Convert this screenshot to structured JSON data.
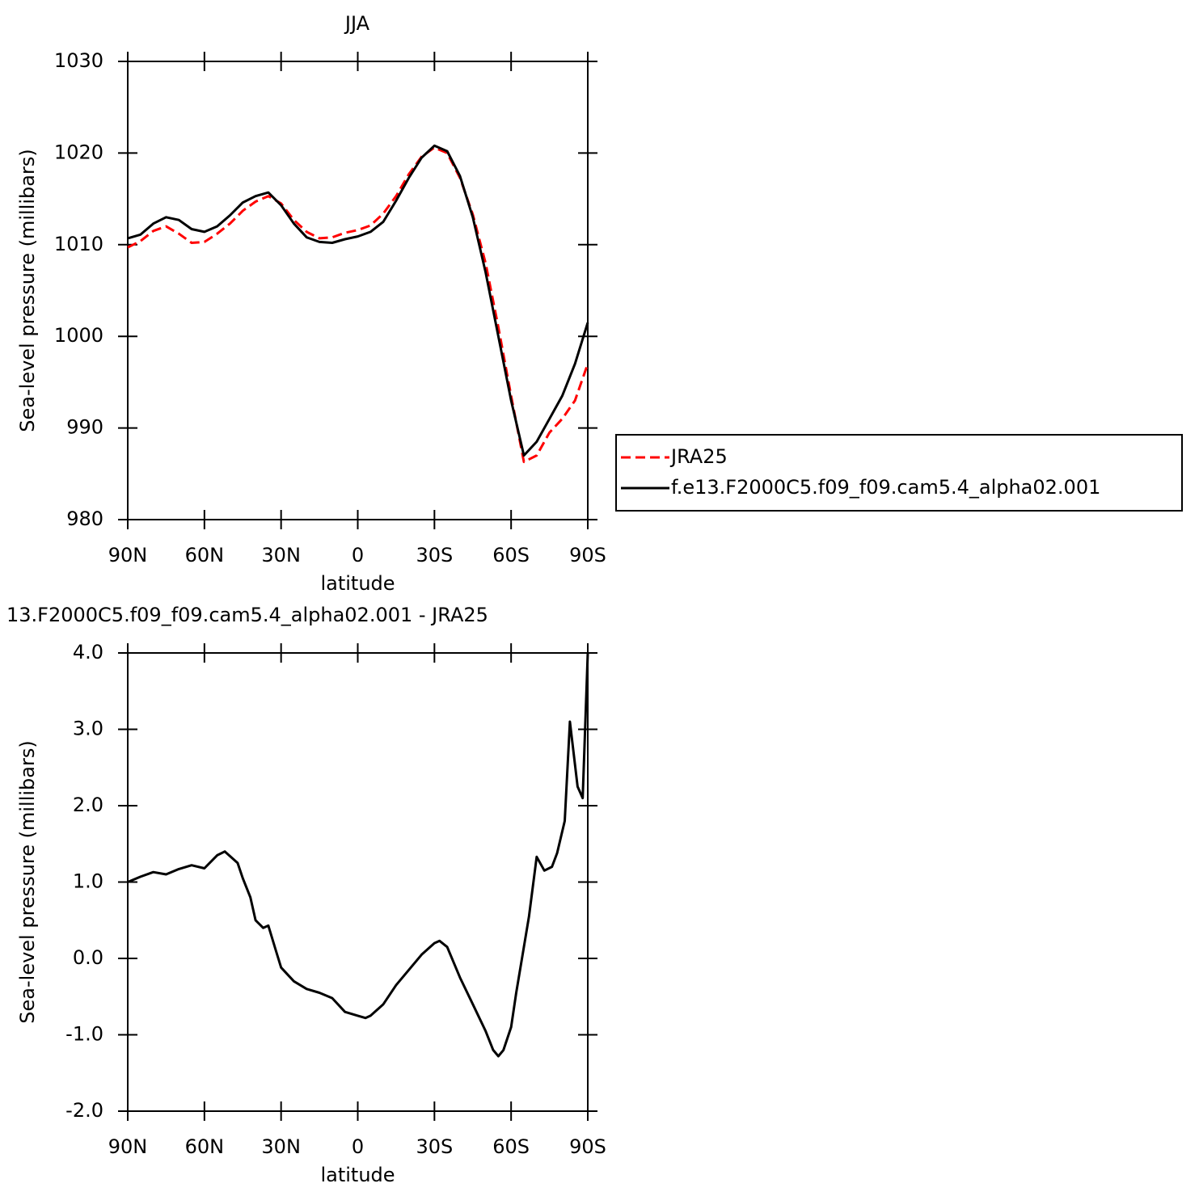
{
  "chart_data": [
    {
      "type": "line",
      "title": "JJA",
      "xlabel": "latitude",
      "ylabel": "Sea-level pressure (millibars)",
      "x": [
        90,
        85,
        80,
        75,
        70,
        65,
        60,
        55,
        50,
        45,
        40,
        35,
        30,
        25,
        20,
        15,
        10,
        5,
        0,
        -5,
        -10,
        -15,
        -20,
        -25,
        -30,
        -35,
        -40,
        -45,
        -50,
        -55,
        -60,
        -65,
        -70,
        -75,
        -80,
        -85,
        -90
      ],
      "series": [
        {
          "name": "JRA25",
          "color": "#ff0000",
          "style": "dashed",
          "values": [
            1009.7,
            1010.4,
            1011.5,
            1012.0,
            1011.2,
            1010.2,
            1010.3,
            1011.2,
            1012.3,
            1013.7,
            1014.7,
            1015.3,
            1014.5,
            1012.7,
            1011.4,
            1010.7,
            1010.8,
            1011.3,
            1011.6,
            1012.1,
            1013.4,
            1015.3,
            1017.7,
            1019.6,
            1020.6,
            1020.0,
            1017.3,
            1013.3,
            1008.0,
            1001.0,
            993.5,
            986.3,
            987.0,
            989.5,
            991.0,
            993.0,
            997.0
          ]
        },
        {
          "name": "f.e13.F2000C5.f09_f09.cam5.4_alpha02.001",
          "color": "#000000",
          "style": "solid",
          "values": [
            1010.7,
            1011.1,
            1012.3,
            1013.0,
            1012.7,
            1011.7,
            1011.4,
            1012.0,
            1013.2,
            1014.6,
            1015.3,
            1015.7,
            1014.3,
            1012.3,
            1010.8,
            1010.3,
            1010.2,
            1010.6,
            1010.9,
            1011.4,
            1012.5,
            1014.8,
            1017.3,
            1019.5,
            1020.8,
            1020.2,
            1017.5,
            1013.0,
            1007.0,
            1000.0,
            993.0,
            987.0,
            988.5,
            991.0,
            993.5,
            997.0,
            1001.5
          ]
        }
      ],
      "xlim": [
        90,
        -90
      ],
      "xticks": [
        {
          "value": 90,
          "label": "90N"
        },
        {
          "value": 60,
          "label": "60N"
        },
        {
          "value": 30,
          "label": "30N"
        },
        0,
        {
          "value": -30,
          "label": "30S"
        },
        {
          "value": -60,
          "label": "60S"
        },
        {
          "value": -90,
          "label": "90S"
        }
      ],
      "ylim": [
        980,
        1030
      ],
      "yticks": [
        980,
        990,
        1000,
        1010,
        1020,
        1030
      ],
      "legend": "right"
    },
    {
      "type": "line",
      "title": "13.F2000C5.f09_f09.cam5.4_alpha02.001 - JRA25",
      "xlabel": "latitude",
      "ylabel": "Sea-level pressure (millibars)",
      "x": [
        90,
        85,
        80,
        75,
        70,
        65,
        60,
        55,
        52,
        47,
        45,
        42,
        40,
        37,
        35,
        32,
        30,
        25,
        20,
        15,
        10,
        5,
        0,
        -3,
        -5,
        -10,
        -15,
        -20,
        -25,
        -30,
        -32,
        -35,
        -40,
        -45,
        -50,
        -53,
        -55,
        -57,
        -60,
        -62,
        -65,
        -67,
        -70,
        -73,
        -76,
        -78,
        -81,
        -83,
        -86,
        -88,
        -90
      ],
      "color": "#000000",
      "values": [
        1.0,
        1.07,
        1.13,
        1.1,
        1.17,
        1.22,
        1.18,
        1.35,
        1.4,
        1.25,
        1.05,
        0.8,
        0.5,
        0.4,
        0.43,
        0.1,
        -0.12,
        -0.3,
        -0.4,
        -0.45,
        -0.52,
        -0.7,
        -0.75,
        -0.78,
        -0.75,
        -0.6,
        -0.35,
        -0.15,
        0.05,
        0.2,
        0.23,
        0.15,
        -0.25,
        -0.6,
        -0.95,
        -1.2,
        -1.28,
        -1.2,
        -0.9,
        -0.45,
        0.15,
        0.55,
        1.33,
        1.15,
        1.2,
        1.38,
        1.8,
        3.1,
        2.25,
        2.1,
        4.0
      ],
      "xlim": [
        90,
        -90
      ],
      "xticks": [
        {
          "value": 90,
          "label": "90N"
        },
        {
          "value": 60,
          "label": "60N"
        },
        {
          "value": 30,
          "label": "30N"
        },
        0,
        {
          "value": -30,
          "label": "30S"
        },
        {
          "value": -60,
          "label": "60S"
        },
        {
          "value": -90,
          "label": "90S"
        }
      ],
      "ylim": [
        -2,
        4
      ],
      "yticks": [
        {
          "value": -2,
          "label": "-2.0"
        },
        {
          "value": -1,
          "label": "-1.0"
        },
        {
          "value": 0,
          "label": "0.0"
        },
        {
          "value": 1,
          "label": "1.0"
        },
        {
          "value": 2,
          "label": "2.0"
        },
        {
          "value": 3,
          "label": "3.0"
        },
        {
          "value": 4,
          "label": "4.0"
        }
      ]
    }
  ]
}
